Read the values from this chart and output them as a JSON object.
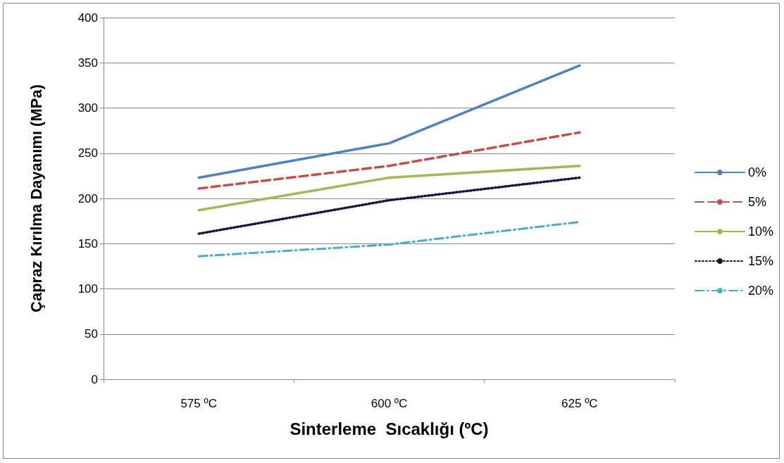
{
  "chart_data": {
    "type": "line",
    "xlabel": "Sinterleme  Sıcaklığı (ºC)",
    "ylabel": "Çapraz Kırılma Dayanımı (MPa)",
    "categories": [
      "575 ºC",
      "600 ºC",
      "625 ºC"
    ],
    "series": [
      {
        "name": "0%",
        "color": "#4f81bd",
        "line_style": "solid",
        "values": [
          223,
          261,
          347
        ]
      },
      {
        "name": "5%",
        "color": "#c0504d",
        "line_style": "dashed",
        "values": [
          211,
          236,
          273
        ]
      },
      {
        "name": "10%",
        "color": "#9bbb59",
        "line_style": "solid",
        "values": [
          187,
          223,
          236
        ]
      },
      {
        "name": "15%",
        "color": "#1f0f3f",
        "line_style": "dotted",
        "values": [
          161,
          198,
          223
        ]
      },
      {
        "name": "20%",
        "color": "#4bacc6",
        "line_style": "dashdot",
        "values": [
          136,
          149,
          174
        ]
      }
    ],
    "ylim": [
      0,
      400
    ],
    "yticks": [
      0,
      50,
      100,
      150,
      200,
      250,
      300,
      350,
      400
    ],
    "grid": "y",
    "legend": "right",
    "marker": "none"
  }
}
